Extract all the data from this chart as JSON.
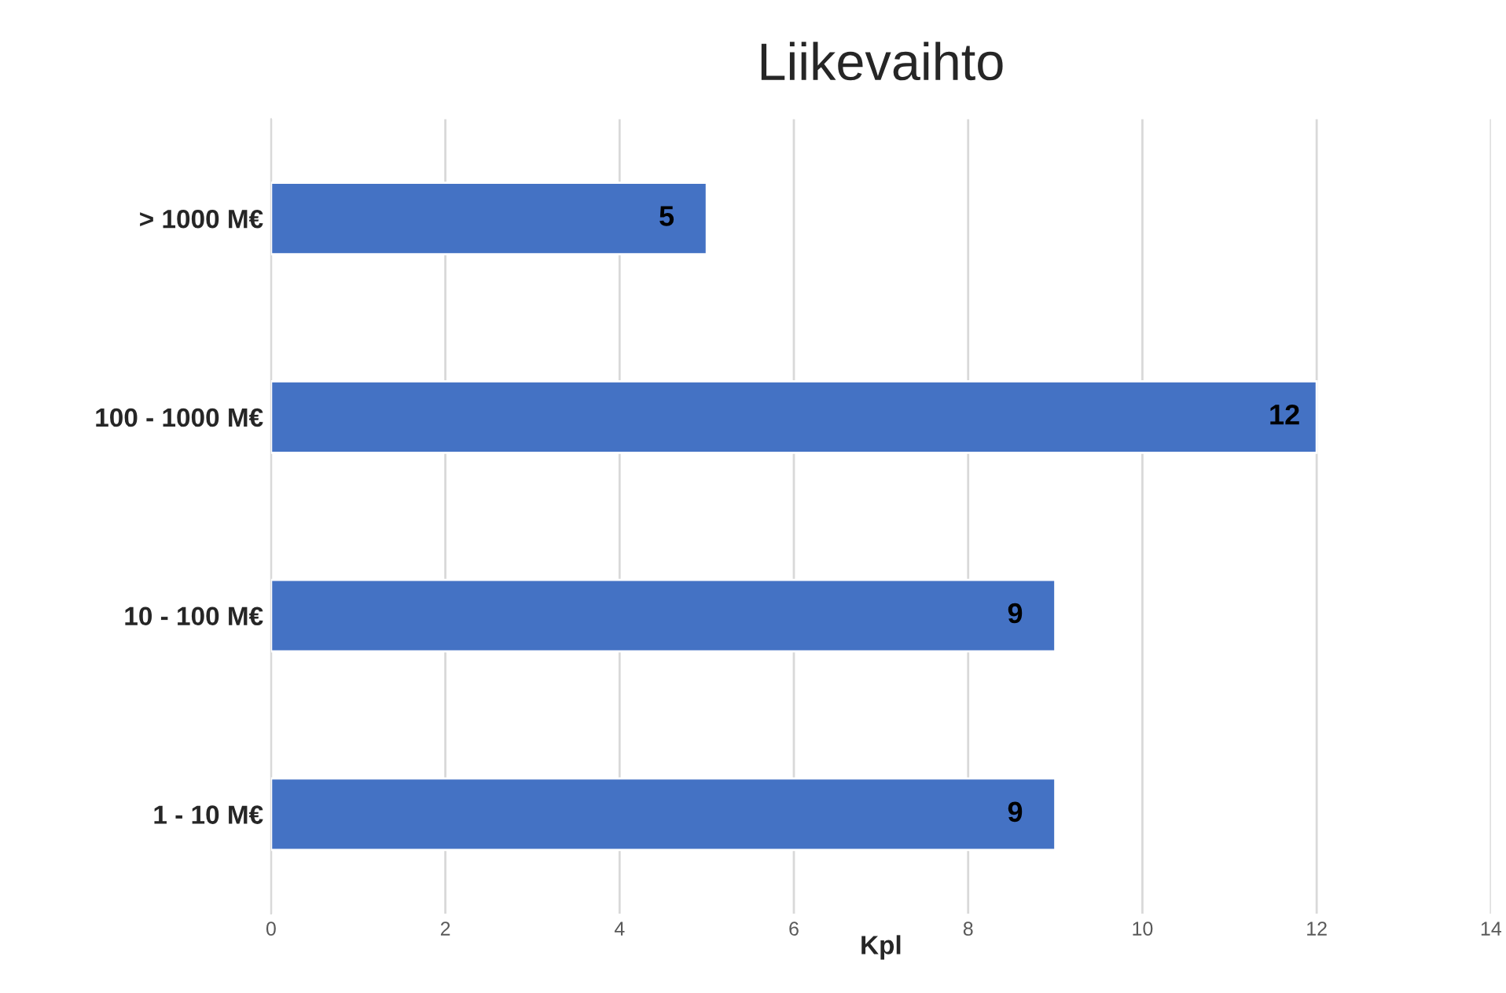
{
  "chart_data": {
    "type": "bar",
    "orientation": "horizontal",
    "title": "Liikevaihto",
    "xlabel": "Kpl",
    "categories": [
      "> 1000 M€",
      "100 - 1000 M€",
      "10 - 100 M€",
      "1 - 10 M€"
    ],
    "values": [
      5,
      12,
      9,
      9
    ],
    "color": "#4472c4",
    "data_labels": true,
    "xlim": [
      0,
      14
    ],
    "xticks": [
      0,
      2,
      4,
      6,
      8,
      10,
      12,
      14
    ],
    "grid": "x",
    "legend": false
  }
}
